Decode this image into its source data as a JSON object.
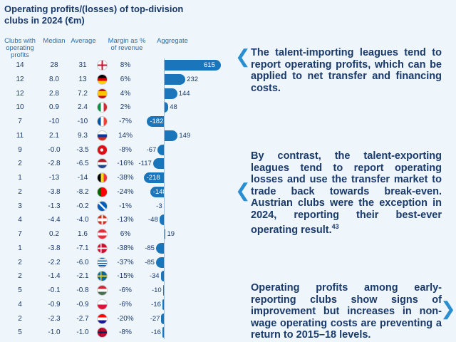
{
  "title": "Operating profits/(losses) of top-division clubs in 2024 (€m)",
  "columns": [
    "Clubs with operating profits",
    "Median",
    "Average",
    "Margin as % of revenue",
    "Aggregate"
  ],
  "rows": [
    {
      "clubs": "14",
      "median": "28",
      "average": "31",
      "margin": "8%",
      "aggregate": 615
    },
    {
      "clubs": "12",
      "median": "8.0",
      "average": "13",
      "margin": "6%",
      "aggregate": 232
    },
    {
      "clubs": "12",
      "median": "2.8",
      "average": "7.2",
      "margin": "4%",
      "aggregate": 144
    },
    {
      "clubs": "10",
      "median": "0.9",
      "average": "2.4",
      "margin": "2%",
      "aggregate": 48
    },
    {
      "clubs": "7",
      "median": "-10",
      "average": "-10",
      "margin": "-7%",
      "aggregate": -182
    },
    {
      "clubs": "11",
      "median": "2.1",
      "average": "9.3",
      "margin": "14%",
      "aggregate": 149
    },
    {
      "clubs": "9",
      "median": "-0.0",
      "average": "-3.5",
      "margin": "-8%",
      "aggregate": -67
    },
    {
      "clubs": "2",
      "median": "-2.8",
      "average": "-6.5",
      "margin": "-16%",
      "aggregate": -117
    },
    {
      "clubs": "1",
      "median": "-13",
      "average": "-14",
      "margin": "-38%",
      "aggregate": -218
    },
    {
      "clubs": "2",
      "median": "-3.8",
      "average": "-8.2",
      "margin": "-24%",
      "aggregate": -148
    },
    {
      "clubs": "3",
      "median": "-1.3",
      "average": "-0.2",
      "margin": "-1%",
      "aggregate": -3
    },
    {
      "clubs": "4",
      "median": "-4.4",
      "average": "-4.0",
      "margin": "-13%",
      "aggregate": -48
    },
    {
      "clubs": "7",
      "median": "0.2",
      "average": "1.6",
      "margin": "6%",
      "aggregate": 19
    },
    {
      "clubs": "1",
      "median": "-3.8",
      "average": "-7.1",
      "margin": "-38%",
      "aggregate": -85
    },
    {
      "clubs": "2",
      "median": "-2.2",
      "average": "-6.0",
      "margin": "-37%",
      "aggregate": -85
    },
    {
      "clubs": "2",
      "median": "-1.4",
      "average": "-2.1",
      "margin": "-15%",
      "aggregate": -34
    },
    {
      "clubs": "5",
      "median": "-0.1",
      "average": "-0.8",
      "margin": "-6%",
      "aggregate": -10
    },
    {
      "clubs": "4",
      "median": "-0.9",
      "average": "-0.9",
      "margin": "-6%",
      "aggregate": -16
    },
    {
      "clubs": "2",
      "median": "-2.3",
      "average": "-2.7",
      "margin": "-20%",
      "aggregate": -27
    },
    {
      "clubs": "5",
      "median": "-1.0",
      "average": "-1.0",
      "margin": "-8%",
      "aggregate": -16
    }
  ],
  "notes": [
    {
      "text": "The talent-importing leagues tend to report operating profits, which can be applied to net transfer and financing costs."
    },
    {
      "text": "By contrast, the talent-exporting leagues tend to report operating losses and use the transfer market to trade back towards break-even. Austrian clubs were the exception in 2024, reporting their best-ever operating result.",
      "footnote": "43"
    },
    {
      "text": "Operating profits among early-reporting clubs show signs of improvement but increases in non-wage operating costs are preventing a return to 2015–18 levels."
    }
  ]
}
